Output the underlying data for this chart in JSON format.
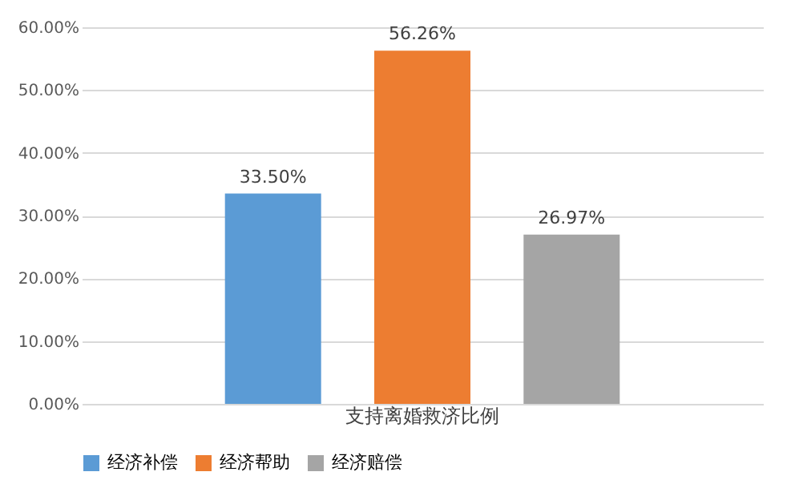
{
  "chart_data": {
    "type": "bar",
    "categories": [
      "支持离婚救济比例"
    ],
    "series": [
      {
        "name": "经济补偿",
        "color": "#5b9bd5",
        "values": [
          33.5
        ],
        "value_labels": [
          "33.50%"
        ]
      },
      {
        "name": "经济帮助",
        "color": "#ed7d31",
        "values": [
          56.26
        ],
        "value_labels": [
          "56.26%"
        ]
      },
      {
        "name": "经济赔偿",
        "color": "#a5a5a5",
        "values": [
          26.97
        ],
        "value_labels": [
          "26.97%"
        ]
      }
    ],
    "ylim": [
      0,
      60
    ],
    "yticks": [
      {
        "value": 0,
        "label": "0.00%"
      },
      {
        "value": 10,
        "label": "10.00%"
      },
      {
        "value": 20,
        "label": "20.00%"
      },
      {
        "value": 30,
        "label": "30.00%"
      },
      {
        "value": 40,
        "label": "40.00%"
      },
      {
        "value": 50,
        "label": "50.00%"
      },
      {
        "value": 60,
        "label": "60.00%"
      }
    ],
    "grid": "y",
    "legend": "bottom"
  }
}
